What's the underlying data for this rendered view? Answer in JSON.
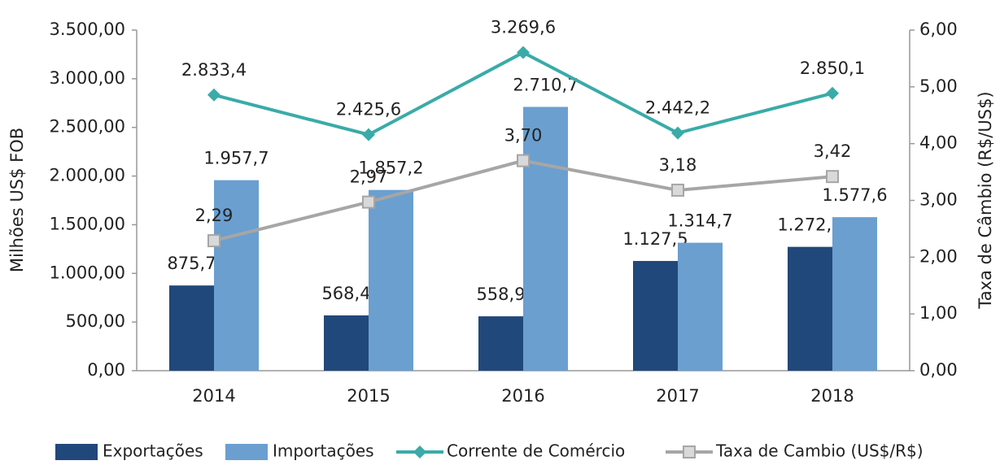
{
  "chart_data": {
    "type": "bar-line",
    "categories": [
      "2014",
      "2015",
      "2016",
      "2017",
      "2018"
    ],
    "series": [
      {
        "name": "Exportações",
        "type": "bar",
        "color": "#21487a",
        "values": [
          875.7,
          568.4,
          558.9,
          1127.5,
          1272.6
        ],
        "value_labels": [
          "875,7",
          "568,4",
          "558,9",
          "1.127,5",
          "1.272,6"
        ]
      },
      {
        "name": "Importações",
        "type": "bar",
        "color": "#6a9fd0",
        "values": [
          1957.7,
          1857.2,
          2710.7,
          1314.7,
          1577.6
        ],
        "value_labels": [
          "1.957,7",
          "1.857,2",
          "2.710,7",
          "1.314,7",
          "1.577,6"
        ]
      },
      {
        "name": "Corrente de Comércio",
        "type": "line",
        "color": "#3aaba8",
        "marker": "diamond",
        "values": [
          2833.4,
          2425.6,
          3269.6,
          2442.2,
          2850.1
        ],
        "value_labels": [
          "2.833,4",
          "2.425,6",
          "3.269,6",
          "2.442,2",
          "2.850,1"
        ]
      },
      {
        "name": "Taxa de Cambio (US$/R$)",
        "type": "line",
        "axis": "y2",
        "color": "#a6a6a6",
        "marker": "square",
        "values": [
          2.29,
          2.97,
          3.7,
          3.18,
          3.42
        ],
        "value_labels": [
          "2,29",
          "2,97",
          "3,70",
          "3,18",
          "3,42"
        ]
      }
    ],
    "ylabel": "Milhões US$ FOB",
    "y2label": "Taxa de Câmbio (R$/US$)",
    "ylim": [
      0,
      3500
    ],
    "yticks": [
      {
        "value": 0,
        "label": "0,00"
      },
      {
        "value": 500,
        "label": "500,00"
      },
      {
        "value": 1000,
        "label": "1.000,00"
      },
      {
        "value": 1500,
        "label": "1.500,00"
      },
      {
        "value": 2000,
        "label": "2.000,00"
      },
      {
        "value": 2500,
        "label": "2.500,00"
      },
      {
        "value": 3000,
        "label": "3.000,00"
      },
      {
        "value": 3500,
        "label": "3.500,00"
      }
    ],
    "y2lim": [
      0,
      6
    ],
    "y2ticks": [
      {
        "value": 0,
        "label": "0,00"
      },
      {
        "value": 1,
        "label": "1,00"
      },
      {
        "value": 2,
        "label": "2,00"
      },
      {
        "value": 3,
        "label": "3,00"
      },
      {
        "value": 4,
        "label": "4,00"
      },
      {
        "value": 5,
        "label": "5,00"
      },
      {
        "value": 6,
        "label": "6,00"
      }
    ],
    "legend": "bottom"
  }
}
